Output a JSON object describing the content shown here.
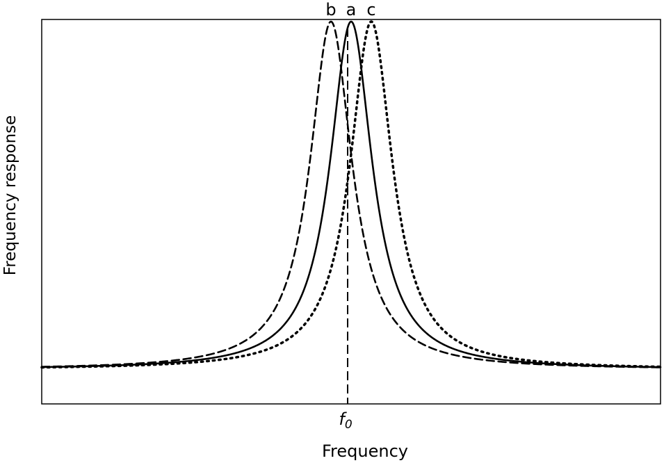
{
  "chart_data": {
    "type": "line",
    "xlabel": "Frequency",
    "ylabel": "Frequency response",
    "x_tick_label": "f0",
    "x_tick_label_main": "f",
    "x_tick_label_sub": "0",
    "x_marker": 0,
    "ylim": [
      0,
      1
    ],
    "series": [
      {
        "name": "a",
        "style": "solid",
        "peak_x": 0,
        "peak_y": 1.0
      },
      {
        "name": "b",
        "style": "dashed",
        "peak_x": -1,
        "peak_y": 1.0
      },
      {
        "name": "c",
        "style": "dotted",
        "peak_x": 1,
        "peak_y": 1.0
      }
    ],
    "grid": false,
    "legend": "none"
  }
}
